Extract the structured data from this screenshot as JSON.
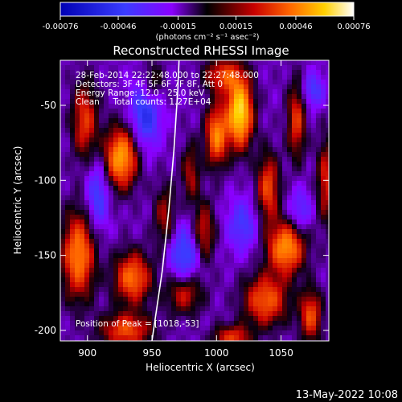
{
  "chart_data": {
    "type": "heatmap",
    "title": "Reconstructed RHESSI Image",
    "xlabel": "Heliocentric X (arcsec)",
    "ylabel": "Heliocentric Y (arcsec)",
    "xlim": [
      879,
      1087
    ],
    "ylim": [
      -207,
      -20
    ],
    "x_ticks": [
      "900",
      "950",
      "1000",
      "1050"
    ],
    "x_tick_values": [
      900,
      950,
      1000,
      1050
    ],
    "y_ticks": [
      "-50",
      "-100",
      "-150",
      "-200"
    ],
    "y_tick_values": [
      -50,
      -100,
      -150,
      -200
    ],
    "colorbar": {
      "ticks": [
        "-0.00076",
        "-0.00046",
        "-0.00015",
        "0.00015",
        "0.00046",
        "0.00076"
      ],
      "tick_values": [
        -0.00076,
        -0.00046,
        -0.00015,
        0.00015,
        0.00046,
        0.00076
      ],
      "range": [
        -0.00076,
        0.00076
      ],
      "units": "(photons cm⁻² s⁻¹ asec⁻²)"
    },
    "annotations": {
      "time_range": "28-Feb-2014 22:22:48.000 to 22:27:48.000",
      "detectors": "Detectors: 3F 4F 5F 6F 7F 8F, Att 0",
      "energy": "Energy Range: 12.0 - 25.0 keV",
      "method": "Clean     Total counts: 1.27E+04",
      "peak": "Position of Peak = [1018,-53]"
    },
    "limb": [
      [
        950,
        -207
      ],
      [
        958,
        -160
      ],
      [
        963,
        -120
      ],
      [
        967,
        -80
      ],
      [
        970,
        -40
      ],
      [
        971,
        -20
      ]
    ],
    "sources": [
      {
        "x": 1018,
        "y": -55,
        "amp": 1.0,
        "sx": 7,
        "sy": 16
      },
      {
        "x": 926,
        "y": -85,
        "amp": 0.8,
        "sx": 9,
        "sy": 14
      },
      {
        "x": 1000,
        "y": -70,
        "amp": 0.7,
        "sx": 6,
        "sy": 14
      },
      {
        "x": 1054,
        "y": -145,
        "amp": 0.75,
        "sx": 10,
        "sy": 12
      },
      {
        "x": 1040,
        "y": -105,
        "amp": 0.55,
        "sx": 6,
        "sy": 16
      },
      {
        "x": 1062,
        "y": -60,
        "amp": 0.5,
        "sx": 5,
        "sy": 18
      },
      {
        "x": 1038,
        "y": -180,
        "amp": 0.6,
        "sx": 12,
        "sy": 12
      },
      {
        "x": 1073,
        "y": -190,
        "amp": 0.55,
        "sx": 6,
        "sy": 12
      },
      {
        "x": 898,
        "y": -60,
        "amp": 0.5,
        "sx": 7,
        "sy": 18
      },
      {
        "x": 893,
        "y": -150,
        "amp": 0.7,
        "sx": 9,
        "sy": 20
      },
      {
        "x": 935,
        "y": -165,
        "amp": 0.65,
        "sx": 10,
        "sy": 12
      },
      {
        "x": 930,
        "y": -200,
        "amp": 0.55,
        "sx": 14,
        "sy": 8
      },
      {
        "x": 975,
        "y": -175,
        "amp": 0.45,
        "sx": 10,
        "sy": 10
      },
      {
        "x": 990,
        "y": -135,
        "amp": 0.45,
        "sx": 6,
        "sy": 14
      },
      {
        "x": 960,
        "y": -125,
        "amp": 0.35,
        "sx": 6,
        "sy": 16
      },
      {
        "x": 1005,
        "y": -30,
        "amp": 0.5,
        "sx": 10,
        "sy": 8
      },
      {
        "x": 950,
        "y": -35,
        "amp": 0.35,
        "sx": 6,
        "sy": 10
      },
      {
        "x": 980,
        "y": -95,
        "amp": 0.35,
        "sx": 5,
        "sy": 14
      },
      {
        "x": 1085,
        "y": -100,
        "amp": 0.45,
        "sx": 5,
        "sy": 20
      },
      {
        "x": 1012,
        "y": -205,
        "amp": 0.5,
        "sx": 10,
        "sy": 6
      },
      {
        "x": 945,
        "y": -55,
        "amp": -0.5,
        "sx": 8,
        "sy": 16
      },
      {
        "x": 975,
        "y": -150,
        "amp": -0.45,
        "sx": 9,
        "sy": 14
      },
      {
        "x": 1020,
        "y": -130,
        "amp": -0.35,
        "sx": 8,
        "sy": 12
      },
      {
        "x": 908,
        "y": -110,
        "amp": -0.4,
        "sx": 6,
        "sy": 16
      },
      {
        "x": 1065,
        "y": -120,
        "amp": -0.3,
        "sx": 6,
        "sy": 10
      },
      {
        "x": 1075,
        "y": -40,
        "amp": -0.35,
        "sx": 6,
        "sy": 8
      }
    ]
  },
  "footer": {
    "date": "13-May-2022 10:08"
  }
}
